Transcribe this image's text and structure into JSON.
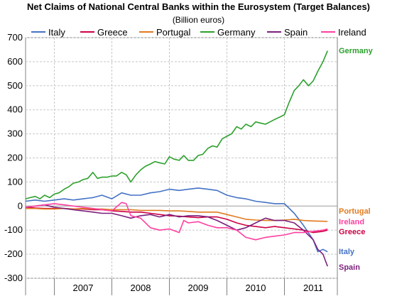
{
  "chart_data": {
    "type": "line",
    "title": "Net Claims of National Central Banks within the Eurosystem (Target Balances)",
    "subtitle": "(Billion euros)",
    "xlabel": "",
    "ylabel": "",
    "ylim": [
      -300,
      700
    ],
    "xlim": [
      2006.5,
      2011.92
    ],
    "yticks": [
      700,
      600,
      500,
      400,
      300,
      200,
      100,
      0,
      -100,
      -200,
      -300
    ],
    "xticks": [
      "2007",
      "2008",
      "2009",
      "2010",
      "2011"
    ],
    "grid": true,
    "legend_position": "top",
    "series": [
      {
        "name": "Italy",
        "color": "#4472c4",
        "end_label": "Italy",
        "points": [
          [
            2006.5,
            20
          ],
          [
            2006.67,
            25
          ],
          [
            2006.83,
            20
          ],
          [
            2007.0,
            25
          ],
          [
            2007.17,
            30
          ],
          [
            2007.33,
            25
          ],
          [
            2007.5,
            30
          ],
          [
            2007.67,
            35
          ],
          [
            2007.83,
            45
          ],
          [
            2008.0,
            30
          ],
          [
            2008.17,
            55
          ],
          [
            2008.33,
            45
          ],
          [
            2008.5,
            45
          ],
          [
            2008.67,
            55
          ],
          [
            2008.83,
            60
          ],
          [
            2009.0,
            70
          ],
          [
            2009.17,
            65
          ],
          [
            2009.33,
            70
          ],
          [
            2009.5,
            75
          ],
          [
            2009.67,
            70
          ],
          [
            2009.83,
            65
          ],
          [
            2010.0,
            45
          ],
          [
            2010.17,
            35
          ],
          [
            2010.33,
            30
          ],
          [
            2010.5,
            20
          ],
          [
            2010.67,
            15
          ],
          [
            2010.83,
            10
          ],
          [
            2011.0,
            10
          ],
          [
            2011.17,
            -30
          ],
          [
            2011.33,
            -80
          ],
          [
            2011.5,
            -140
          ],
          [
            2011.58,
            -190
          ],
          [
            2011.67,
            -180
          ],
          [
            2011.75,
            -190
          ]
        ]
      },
      {
        "name": "Greece",
        "color": "#cc0044",
        "end_label": "Greece",
        "points": [
          [
            2006.5,
            -5
          ],
          [
            2006.67,
            -8
          ],
          [
            2006.83,
            -10
          ],
          [
            2007.0,
            -10
          ],
          [
            2007.17,
            -10
          ],
          [
            2007.33,
            -12
          ],
          [
            2007.5,
            -12
          ],
          [
            2007.67,
            -15
          ],
          [
            2007.83,
            -15
          ],
          [
            2008.0,
            -20
          ],
          [
            2008.17,
            -22
          ],
          [
            2008.33,
            -25
          ],
          [
            2008.5,
            -25
          ],
          [
            2008.67,
            -30
          ],
          [
            2008.83,
            -35
          ],
          [
            2009.0,
            -40
          ],
          [
            2009.17,
            -42
          ],
          [
            2009.33,
            -45
          ],
          [
            2009.5,
            -48
          ],
          [
            2009.67,
            -45
          ],
          [
            2009.83,
            -45
          ],
          [
            2010.0,
            -55
          ],
          [
            2010.17,
            -70
          ],
          [
            2010.33,
            -80
          ],
          [
            2010.5,
            -85
          ],
          [
            2010.67,
            -90
          ],
          [
            2010.83,
            -85
          ],
          [
            2011.0,
            -90
          ],
          [
            2011.17,
            -95
          ],
          [
            2011.33,
            -100
          ],
          [
            2011.5,
            -110
          ],
          [
            2011.67,
            -105
          ],
          [
            2011.75,
            -100
          ]
        ]
      },
      {
        "name": "Portugal",
        "color": "#e07b20",
        "end_label": "Portugal",
        "points": [
          [
            2006.5,
            -10
          ],
          [
            2006.67,
            -10
          ],
          [
            2006.83,
            -12
          ],
          [
            2007.0,
            -12
          ],
          [
            2007.17,
            -10
          ],
          [
            2007.33,
            -12
          ],
          [
            2007.5,
            -10
          ],
          [
            2007.67,
            -12
          ],
          [
            2007.83,
            -12
          ],
          [
            2008.0,
            -15
          ],
          [
            2008.17,
            -15
          ],
          [
            2008.33,
            -15
          ],
          [
            2008.5,
            -18
          ],
          [
            2008.67,
            -18
          ],
          [
            2008.83,
            -18
          ],
          [
            2009.0,
            -20
          ],
          [
            2009.17,
            -20
          ],
          [
            2009.33,
            -22
          ],
          [
            2009.5,
            -25
          ],
          [
            2009.67,
            -25
          ],
          [
            2009.83,
            -25
          ],
          [
            2010.0,
            -35
          ],
          [
            2010.17,
            -45
          ],
          [
            2010.33,
            -55
          ],
          [
            2010.5,
            -58
          ],
          [
            2010.67,
            -60
          ],
          [
            2010.83,
            -60
          ],
          [
            2011.0,
            -58
          ],
          [
            2011.17,
            -55
          ],
          [
            2011.33,
            -60
          ],
          [
            2011.5,
            -62
          ],
          [
            2011.67,
            -63
          ],
          [
            2011.75,
            -64
          ]
        ]
      },
      {
        "name": "Germany",
        "color": "#2ca02c",
        "end_label": "Germany",
        "points": [
          [
            2006.5,
            30
          ],
          [
            2006.58,
            35
          ],
          [
            2006.67,
            40
          ],
          [
            2006.75,
            30
          ],
          [
            2006.83,
            45
          ],
          [
            2006.92,
            35
          ],
          [
            2007.0,
            50
          ],
          [
            2007.08,
            55
          ],
          [
            2007.17,
            70
          ],
          [
            2007.25,
            80
          ],
          [
            2007.33,
            95
          ],
          [
            2007.42,
            100
          ],
          [
            2007.5,
            110
          ],
          [
            2007.58,
            115
          ],
          [
            2007.67,
            140
          ],
          [
            2007.75,
            115
          ],
          [
            2007.83,
            120
          ],
          [
            2007.92,
            120
          ],
          [
            2008.0,
            125
          ],
          [
            2008.08,
            125
          ],
          [
            2008.17,
            140
          ],
          [
            2008.25,
            130
          ],
          [
            2008.33,
            100
          ],
          [
            2008.42,
            130
          ],
          [
            2008.5,
            150
          ],
          [
            2008.58,
            165
          ],
          [
            2008.67,
            175
          ],
          [
            2008.75,
            185
          ],
          [
            2008.83,
            180
          ],
          [
            2008.92,
            175
          ],
          [
            2009.0,
            205
          ],
          [
            2009.08,
            195
          ],
          [
            2009.17,
            190
          ],
          [
            2009.25,
            210
          ],
          [
            2009.33,
            190
          ],
          [
            2009.42,
            190
          ],
          [
            2009.5,
            210
          ],
          [
            2009.58,
            215
          ],
          [
            2009.67,
            240
          ],
          [
            2009.75,
            250
          ],
          [
            2009.83,
            245
          ],
          [
            2009.92,
            280
          ],
          [
            2010.0,
            290
          ],
          [
            2010.08,
            300
          ],
          [
            2010.17,
            330
          ],
          [
            2010.25,
            320
          ],
          [
            2010.33,
            340
          ],
          [
            2010.42,
            330
          ],
          [
            2010.5,
            350
          ],
          [
            2010.58,
            345
          ],
          [
            2010.67,
            340
          ],
          [
            2010.75,
            350
          ],
          [
            2010.83,
            360
          ],
          [
            2010.92,
            370
          ],
          [
            2011.0,
            380
          ],
          [
            2011.08,
            430
          ],
          [
            2011.17,
            480
          ],
          [
            2011.25,
            500
          ],
          [
            2011.33,
            525
          ],
          [
            2011.42,
            500
          ],
          [
            2011.5,
            520
          ],
          [
            2011.58,
            560
          ],
          [
            2011.67,
            600
          ],
          [
            2011.75,
            645
          ]
        ]
      },
      {
        "name": "Spain",
        "color": "#7b1f7b",
        "end_label": "Spain",
        "points": [
          [
            2006.5,
            -5
          ],
          [
            2006.67,
            0
          ],
          [
            2006.83,
            5
          ],
          [
            2007.0,
            -5
          ],
          [
            2007.17,
            -10
          ],
          [
            2007.33,
            -15
          ],
          [
            2007.5,
            -20
          ],
          [
            2007.67,
            -25
          ],
          [
            2007.83,
            -30
          ],
          [
            2008.0,
            -30
          ],
          [
            2008.17,
            -40
          ],
          [
            2008.33,
            -50
          ],
          [
            2008.5,
            -40
          ],
          [
            2008.67,
            -35
          ],
          [
            2008.83,
            -45
          ],
          [
            2009.0,
            -35
          ],
          [
            2009.17,
            -45
          ],
          [
            2009.33,
            -40
          ],
          [
            2009.5,
            -40
          ],
          [
            2009.67,
            -45
          ],
          [
            2009.83,
            -60
          ],
          [
            2010.0,
            -80
          ],
          [
            2010.17,
            -100
          ],
          [
            2010.33,
            -90
          ],
          [
            2010.5,
            -70
          ],
          [
            2010.67,
            -50
          ],
          [
            2010.83,
            -60
          ],
          [
            2011.0,
            -60
          ],
          [
            2011.17,
            -70
          ],
          [
            2011.33,
            -100
          ],
          [
            2011.5,
            -140
          ],
          [
            2011.58,
            -180
          ],
          [
            2011.67,
            -200
          ],
          [
            2011.75,
            -250
          ]
        ]
      },
      {
        "name": "Ireland",
        "color": "#ff3fa0",
        "end_label": "Ireland",
        "points": [
          [
            2006.5,
            -5
          ],
          [
            2006.67,
            0
          ],
          [
            2006.83,
            5
          ],
          [
            2007.0,
            10
          ],
          [
            2007.17,
            5
          ],
          [
            2007.33,
            0
          ],
          [
            2007.5,
            -5
          ],
          [
            2007.67,
            -10
          ],
          [
            2007.83,
            -15
          ],
          [
            2008.0,
            -20
          ],
          [
            2008.17,
            15
          ],
          [
            2008.25,
            10
          ],
          [
            2008.33,
            -40
          ],
          [
            2008.5,
            -50
          ],
          [
            2008.67,
            -90
          ],
          [
            2008.83,
            -100
          ],
          [
            2009.0,
            -95
          ],
          [
            2009.17,
            -110
          ],
          [
            2009.25,
            -60
          ],
          [
            2009.33,
            -70
          ],
          [
            2009.5,
            -65
          ],
          [
            2009.67,
            -80
          ],
          [
            2009.83,
            -90
          ],
          [
            2010.0,
            -90
          ],
          [
            2010.17,
            -100
          ],
          [
            2010.33,
            -130
          ],
          [
            2010.5,
            -140
          ],
          [
            2010.67,
            -130
          ],
          [
            2010.83,
            -125
          ],
          [
            2011.0,
            -120
          ],
          [
            2011.17,
            -110
          ],
          [
            2011.33,
            -110
          ],
          [
            2011.5,
            -105
          ],
          [
            2011.67,
            -100
          ],
          [
            2011.75,
            -95
          ]
        ]
      }
    ]
  }
}
